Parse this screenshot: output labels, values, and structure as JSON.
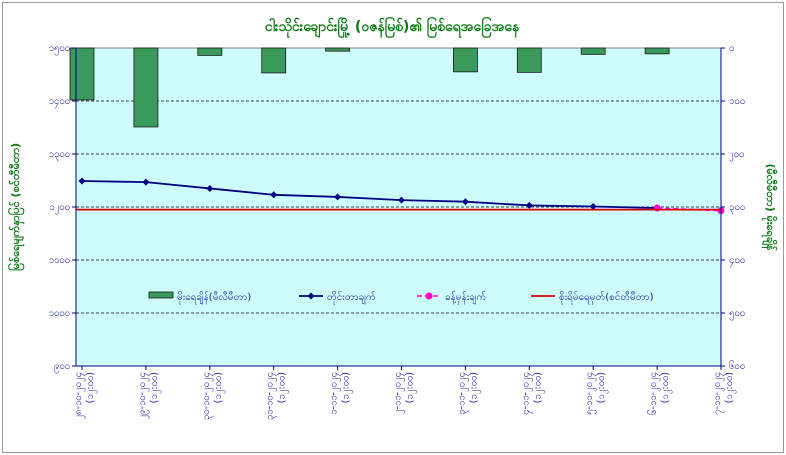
{
  "chart_data": {
    "type": "bar+line",
    "title": "ငါးသိုင်းချောင်းမြို့ (ဝဇန်မြစ်)၏ မြစ်ရေအခြေအနေ",
    "ylabel_left": "မြစ်ရေမျက်နှာပြင် (စင်တီမီတာ)",
    "ylabel_right": "(မီလီမီတာ) မိုးရေချိန်",
    "left_axis": {
      "ylim": [
        900,
        1500
      ],
      "ticks": [
        "၉၀၀",
        "၁၀၀၀",
        "၁၁၀၀",
        "၁၂၀၀",
        "၁၃၀၀",
        "၁၄၀၀",
        "၁၅၀၀"
      ]
    },
    "right_axis": {
      "ylim": [
        0,
        600
      ],
      "inverted": true,
      "ticks": [
        "၀",
        "၁၀၀",
        "၂၀၀",
        "၃၀၀",
        "၄၀၀",
        "၅၀၀",
        "၆၀၀"
      ]
    },
    "categories": [
      {
        "date": "၂၈-၁၀-၂၀၂၄",
        "time": "(၁၂:၀၀)"
      },
      {
        "date": "၂၉-၁၀-၂၀၂၄",
        "time": "(၁၂:၀၀)"
      },
      {
        "date": "၃၀-၁၀-၂၀၂၄",
        "time": "(၁၂:၀၀)"
      },
      {
        "date": "၃၁-၁၀-၂၀၂၄",
        "time": "(၁၂:၀၀)"
      },
      {
        "date": "၁-၁၁-၂၀၂၄",
        "time": "(၁၂:၀၀)"
      },
      {
        "date": "၂-၁၁-၂၀၂၄",
        "time": "(၁၂:၀၀)"
      },
      {
        "date": "၃-၁၁-၂၀၂၄",
        "time": "(၁၂:၀၀)"
      },
      {
        "date": "၄-၁၁-၂၀၂၄",
        "time": "(၁၂:၀၀)"
      },
      {
        "date": "၅-၁၁-၂၀၂၄",
        "time": "(၁၂:၀၀)"
      },
      {
        "date": "၆-၁၁-၂၀၂၄",
        "time": "(၁၂:၀၀)"
      },
      {
        "date": "၇-၁၁-၂၀၂၄",
        "time": "(၁၂:၀၀)"
      }
    ],
    "series": [
      {
        "name": "မိုးရေချိန်(မီလီမီတာ)",
        "type": "bar",
        "axis": "right",
        "color": "#3a9a5c",
        "values": [
          98,
          149,
          14,
          47,
          6,
          null,
          45,
          46,
          12,
          11,
          null
        ]
      },
      {
        "name": "တိုင်းတာချက်",
        "type": "line",
        "axis": "left",
        "color": "#000080",
        "values": [
          1249,
          1247,
          1235,
          1223,
          1219,
          1213,
          1210,
          1203,
          1201,
          1198,
          null
        ]
      },
      {
        "name": "ခန့်မှန်းချက်",
        "type": "line-dashed",
        "axis": "left",
        "color": "#ff00cc",
        "values": [
          null,
          null,
          null,
          null,
          null,
          null,
          null,
          null,
          null,
          1198,
          1193
        ]
      },
      {
        "name": "စိုးရိမ်ရေမှတ်(စင်တီမီတာ)",
        "type": "hline",
        "axis": "left",
        "color": "#dd0000",
        "value": 1195
      }
    ],
    "legend": "inside-middle",
    "grid": true
  }
}
